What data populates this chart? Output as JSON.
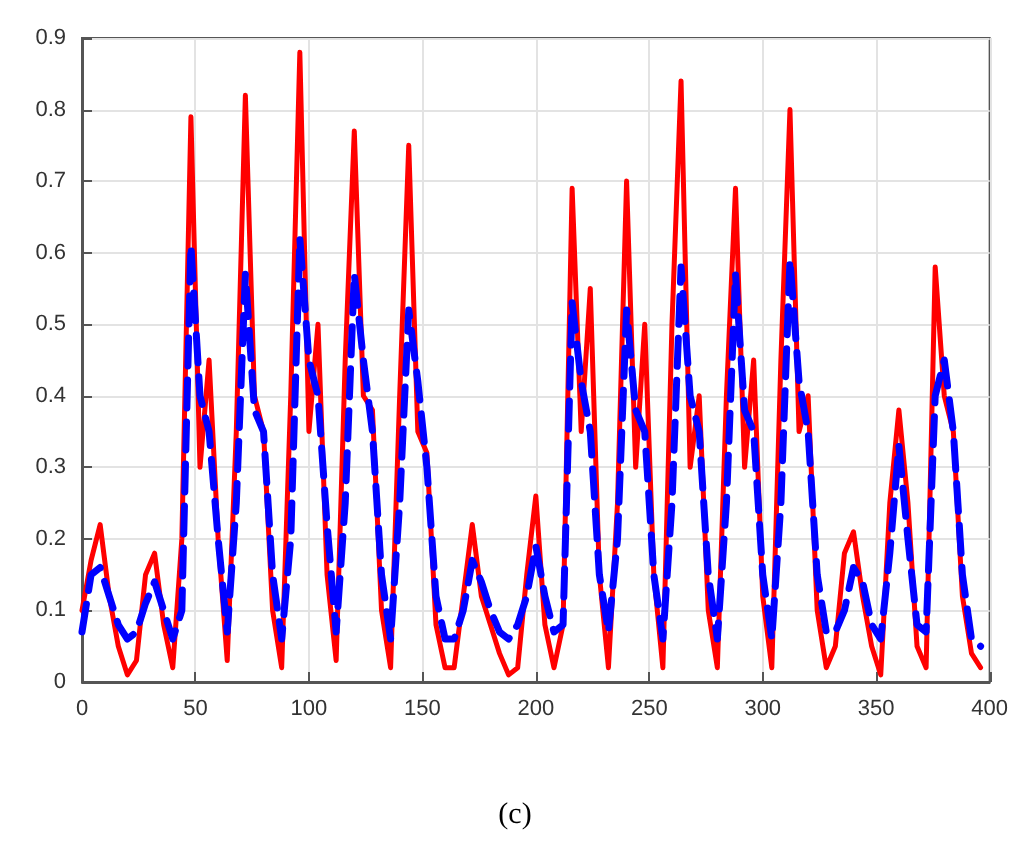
{
  "chart_data": {
    "type": "line",
    "annotations": [
      "(c)"
    ],
    "x": [
      0,
      4,
      8,
      12,
      16,
      20,
      24,
      28,
      32,
      36,
      40,
      44,
      48,
      52,
      56,
      60,
      64,
      68,
      72,
      76,
      80,
      84,
      88,
      92,
      96,
      100,
      104,
      108,
      112,
      116,
      120,
      124,
      128,
      132,
      136,
      140,
      144,
      148,
      152,
      156,
      160,
      164,
      168,
      172,
      176,
      180,
      184,
      188,
      192,
      196,
      200,
      204,
      208,
      212,
      216,
      220,
      224,
      228,
      232,
      236,
      240,
      244,
      248,
      252,
      256,
      260,
      264,
      268,
      272,
      276,
      280,
      284,
      288,
      292,
      296,
      300,
      304,
      308,
      312,
      316,
      320,
      324,
      328,
      332,
      336,
      340,
      344,
      348,
      352,
      356,
      360,
      364,
      368,
      372,
      376,
      380,
      384,
      388,
      392,
      396
    ],
    "series": [
      {
        "color": "#ff0000",
        "line_style": "solid",
        "values": [
          0.1,
          0.17,
          0.22,
          0.12,
          0.05,
          0.01,
          0.03,
          0.15,
          0.18,
          0.08,
          0.02,
          0.2,
          0.79,
          0.3,
          0.45,
          0.2,
          0.03,
          0.35,
          0.82,
          0.4,
          0.35,
          0.1,
          0.02,
          0.4,
          0.88,
          0.35,
          0.5,
          0.15,
          0.03,
          0.45,
          0.77,
          0.4,
          0.38,
          0.1,
          0.02,
          0.4,
          0.75,
          0.35,
          0.32,
          0.08,
          0.02,
          0.02,
          0.12,
          0.22,
          0.12,
          0.08,
          0.04,
          0.01,
          0.02,
          0.15,
          0.26,
          0.08,
          0.02,
          0.08,
          0.69,
          0.35,
          0.55,
          0.15,
          0.02,
          0.25,
          0.7,
          0.3,
          0.5,
          0.15,
          0.02,
          0.5,
          0.84,
          0.3,
          0.4,
          0.1,
          0.02,
          0.4,
          0.69,
          0.3,
          0.45,
          0.12,
          0.02,
          0.45,
          0.8,
          0.35,
          0.4,
          0.1,
          0.02,
          0.05,
          0.18,
          0.21,
          0.12,
          0.05,
          0.01,
          0.25,
          0.38,
          0.25,
          0.05,
          0.02,
          0.58,
          0.4,
          0.35,
          0.12,
          0.04,
          0.02
        ]
      },
      {
        "color": "#0000ff",
        "line_style": "dashed",
        "values": [
          0.07,
          0.15,
          0.16,
          0.12,
          0.08,
          0.06,
          0.07,
          0.11,
          0.14,
          0.1,
          0.06,
          0.1,
          0.61,
          0.4,
          0.35,
          0.2,
          0.07,
          0.25,
          0.57,
          0.38,
          0.35,
          0.15,
          0.06,
          0.2,
          0.62,
          0.45,
          0.4,
          0.22,
          0.07,
          0.25,
          0.57,
          0.45,
          0.35,
          0.15,
          0.06,
          0.25,
          0.52,
          0.42,
          0.3,
          0.12,
          0.06,
          0.06,
          0.1,
          0.17,
          0.14,
          0.1,
          0.07,
          0.06,
          0.08,
          0.12,
          0.19,
          0.12,
          0.07,
          0.08,
          0.53,
          0.42,
          0.35,
          0.15,
          0.07,
          0.2,
          0.52,
          0.38,
          0.35,
          0.15,
          0.06,
          0.25,
          0.58,
          0.4,
          0.35,
          0.15,
          0.06,
          0.25,
          0.57,
          0.38,
          0.35,
          0.15,
          0.06,
          0.25,
          0.59,
          0.42,
          0.35,
          0.15,
          0.07,
          0.07,
          0.1,
          0.16,
          0.14,
          0.08,
          0.06,
          0.18,
          0.33,
          0.2,
          0.08,
          0.07,
          0.4,
          0.45,
          0.35,
          0.15,
          0.06,
          0.05
        ]
      }
    ],
    "xlim": [
      0,
      400
    ],
    "xticks": [
      0,
      50,
      100,
      150,
      200,
      250,
      300,
      350,
      400
    ],
    "ylim": [
      0,
      0.9
    ],
    "yticks": [
      0,
      0.1,
      0.2,
      0.3,
      0.4,
      0.5,
      0.6,
      0.7,
      0.8,
      0.9
    ],
    "grid": true,
    "marker": "none"
  }
}
